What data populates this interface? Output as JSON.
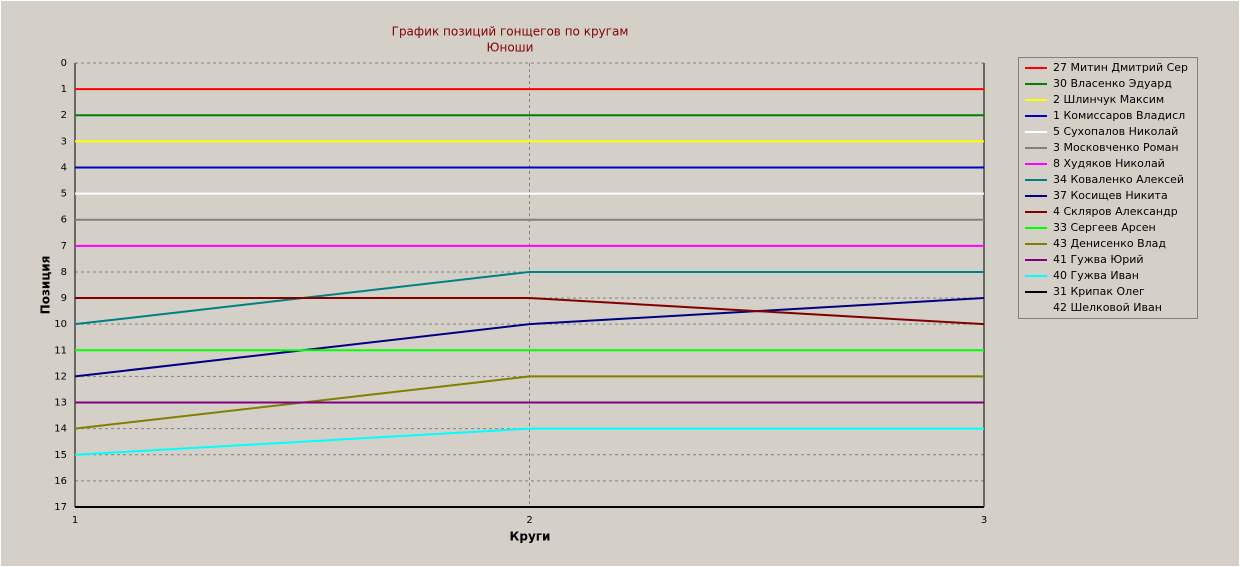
{
  "chart_data": {
    "type": "line",
    "title": "График позиций гонщегов по кругам",
    "subtitle": "Юноши",
    "x_label": "Круги",
    "y_label": "Позиция",
    "x": [
      1,
      2,
      3
    ],
    "xlim": [
      1,
      3
    ],
    "xticks": [
      1,
      2,
      3
    ],
    "ylim": [
      0,
      17
    ],
    "yticks": [
      0,
      1,
      2,
      3,
      4,
      5,
      6,
      7,
      8,
      9,
      10,
      11,
      12,
      13,
      14,
      15,
      16,
      17
    ],
    "y_inverted": true,
    "grid": true,
    "legend": "right",
    "series": [
      {
        "name": "27 Митин Дмитрий Сер",
        "color": "#ff0000",
        "values": [
          1,
          1,
          1
        ]
      },
      {
        "name": "30 Власенко Эдуард",
        "color": "#008000",
        "values": [
          2,
          2,
          2
        ]
      },
      {
        "name": "2 Шлинчук Максим",
        "color": "#ffff00",
        "values": [
          3,
          3,
          3
        ]
      },
      {
        "name": "1 Комиссаров Владисл",
        "color": "#0000c0",
        "values": [
          4,
          4,
          4
        ]
      },
      {
        "name": "5 Сухопалов Николай",
        "color": "#ffffff",
        "values": [
          5,
          5,
          5
        ]
      },
      {
        "name": "3 Московченко Роман",
        "color": "#808080",
        "values": [
          6,
          6,
          6
        ]
      },
      {
        "name": "8 Худяков Николай",
        "color": "#ff00ff",
        "values": [
          7,
          7,
          7
        ]
      },
      {
        "name": "34 Коваленко Алексей",
        "color": "#008080",
        "values": [
          10,
          8,
          8
        ]
      },
      {
        "name": "37 Косищев Никита",
        "color": "#000080",
        "values": [
          12,
          10,
          9
        ]
      },
      {
        "name": "4 Скляров Александр",
        "color": "#800000",
        "values": [
          9,
          9,
          10
        ]
      },
      {
        "name": "33 Сергеев Арсен",
        "color": "#00ff00",
        "values": [
          11,
          11,
          11
        ]
      },
      {
        "name": "43 Денисенко Влад",
        "color": "#808000",
        "values": [
          14,
          12,
          12
        ]
      },
      {
        "name": "41 Гужва Юрий",
        "color": "#800080",
        "values": [
          13,
          13,
          13
        ]
      },
      {
        "name": "40 Гужва Иван",
        "color": "#00ffff",
        "values": [
          15,
          14,
          14
        ]
      },
      {
        "name": "31 Крипак Олег",
        "color": "#000000",
        "values": [
          null,
          null,
          null
        ]
      },
      {
        "name": "42 Шелковой Иван",
        "values": [
          null,
          null,
          null
        ]
      }
    ]
  }
}
